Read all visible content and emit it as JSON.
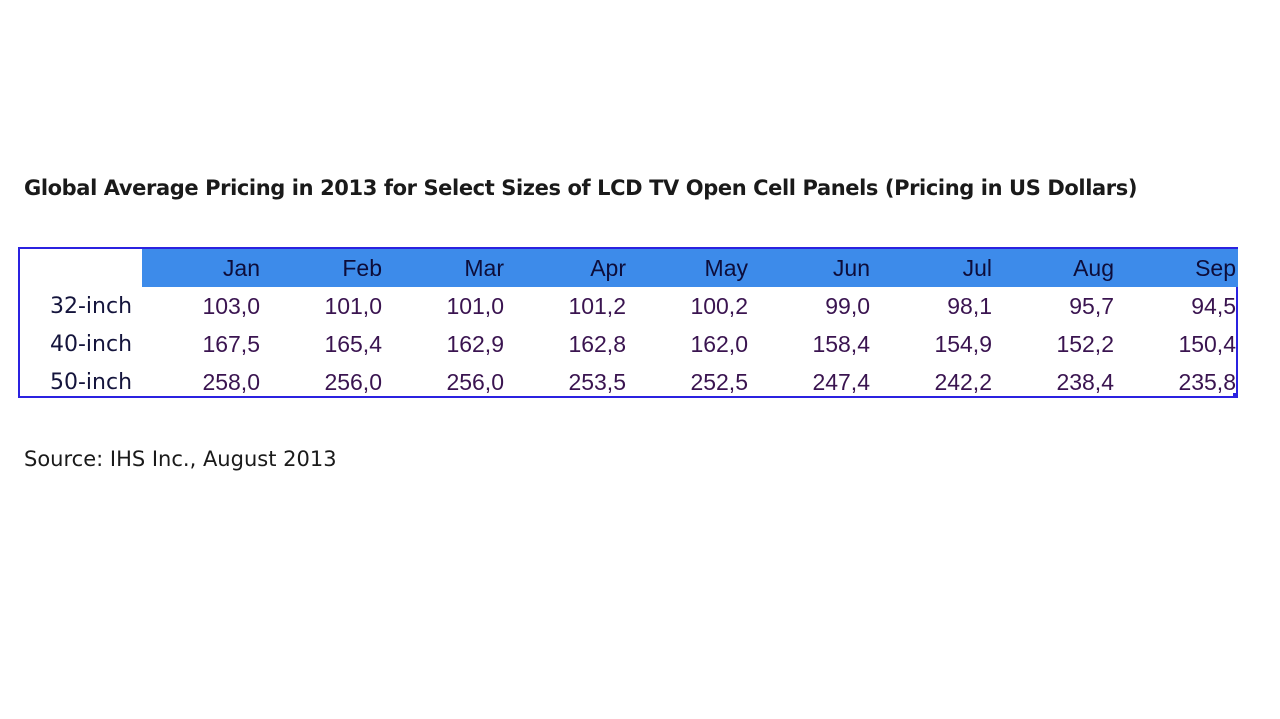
{
  "chart_data": {
    "type": "table",
    "title": "Global Average Pricing in 2013 for Select Sizes of LCD TV Open Cell Panels (Pricing in US Dollars)",
    "columns": [
      "Jan",
      "Feb",
      "Mar",
      "Apr",
      "May",
      "Jun",
      "Jul",
      "Aug",
      "Sep"
    ],
    "rows": [
      {
        "label": "32-inch",
        "values": [
          "103,0",
          "101,0",
          "101,0",
          "101,2",
          "100,2",
          "99,0",
          "98,1",
          "95,7",
          "94,5"
        ]
      },
      {
        "label": "40-inch",
        "values": [
          "167,5",
          "165,4",
          "162,9",
          "162,8",
          "162,0",
          "158,4",
          "154,9",
          "152,2",
          "150,4"
        ]
      },
      {
        "label": "50-inch",
        "values": [
          "258,0",
          "256,0",
          "256,0",
          "253,5",
          "252,5",
          "247,4",
          "242,2",
          "238,4",
          "235,8"
        ]
      }
    ],
    "source": "Source: IHS Inc., August 2013"
  },
  "colors": {
    "header_band": "#3d8bea",
    "border": "#2b22e0",
    "cell_text": "#3a1450"
  }
}
